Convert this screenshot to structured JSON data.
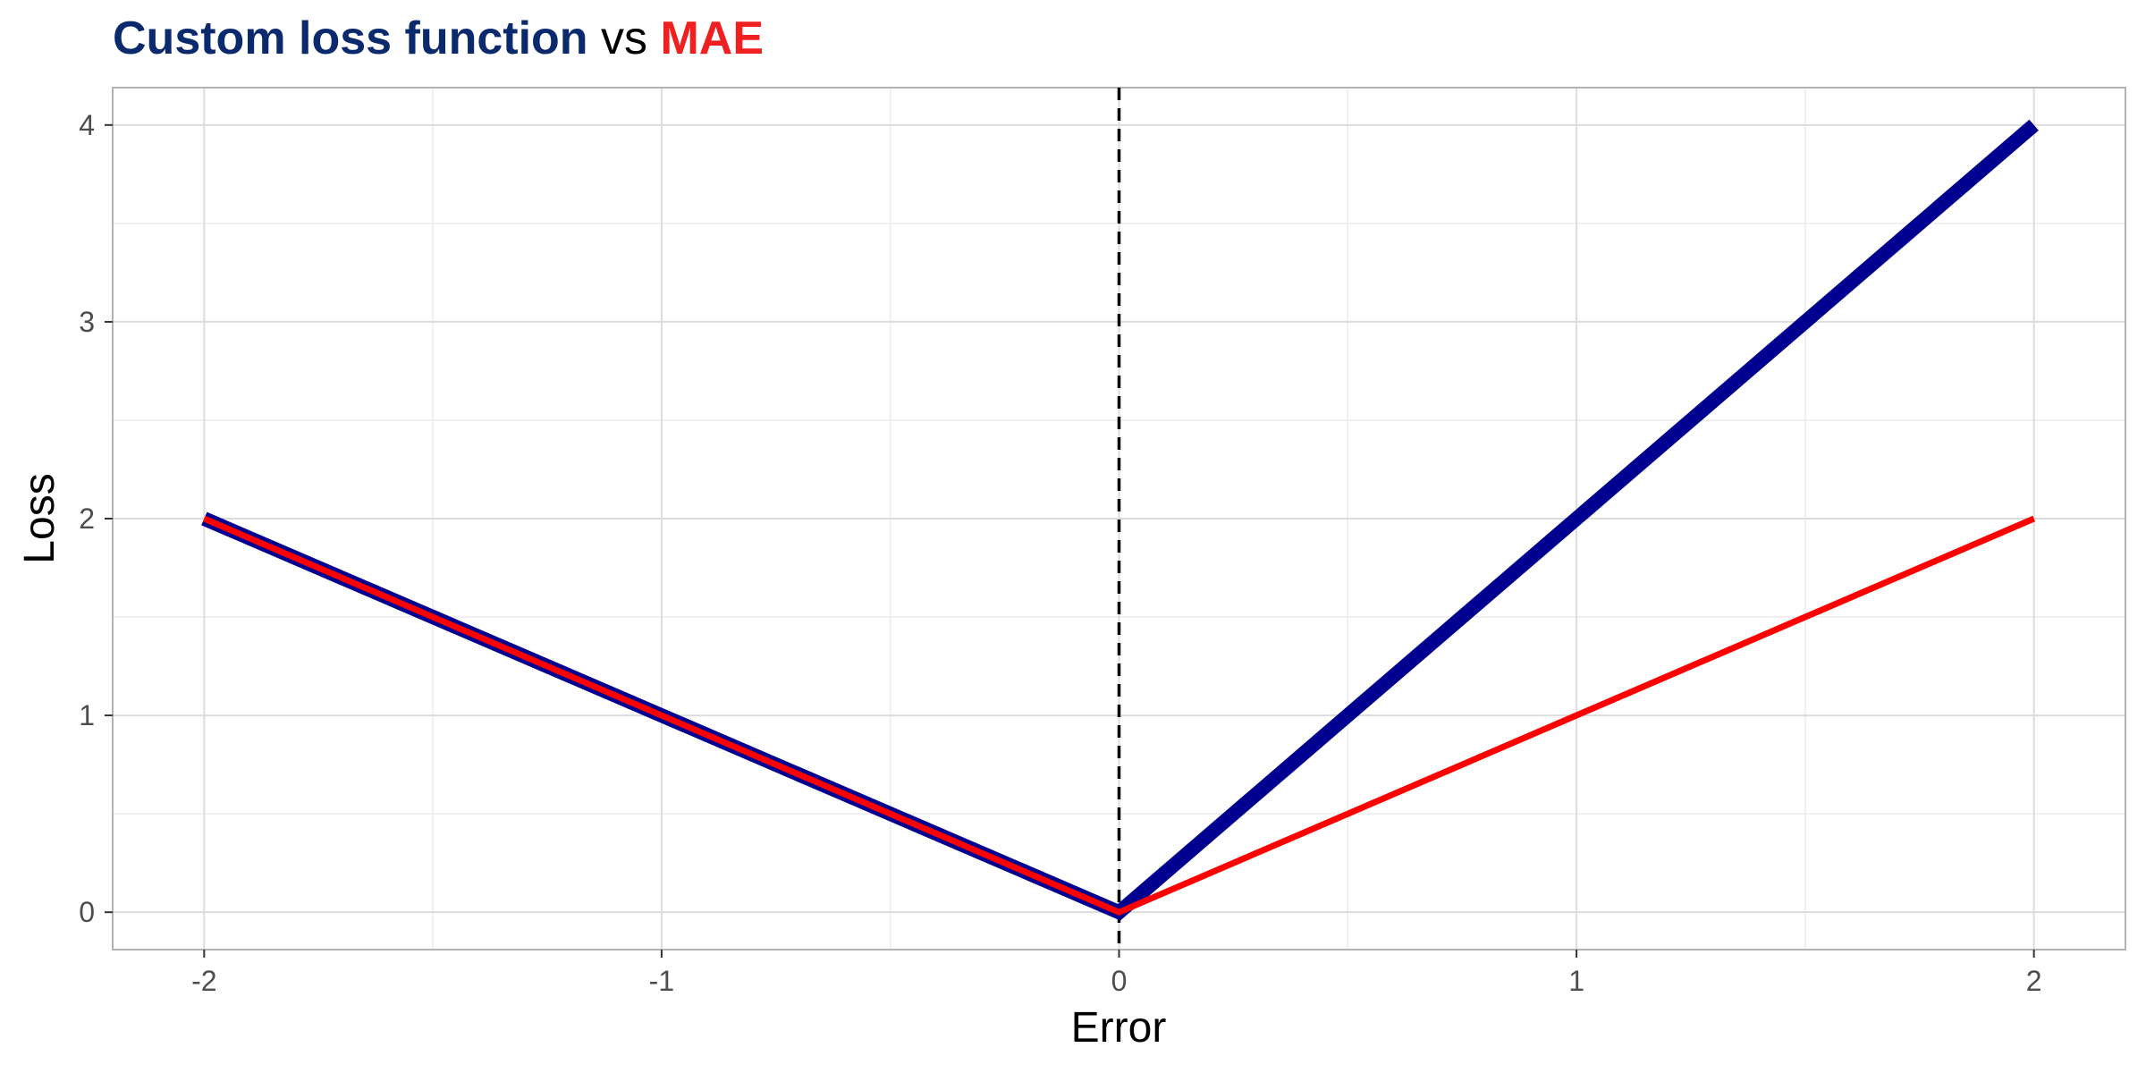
{
  "chart_data": {
    "type": "line",
    "title": {
      "part1": "Custom loss function",
      "part2": " vs ",
      "part3": "MAE"
    },
    "xlabel": "Error",
    "ylabel": "Loss",
    "xlim": [
      -2.2,
      2.2
    ],
    "ylim": [
      -0.19,
      4.19
    ],
    "x_ticks": [
      -2,
      -1,
      0,
      1,
      2
    ],
    "x_tick_labels": [
      "-2",
      "-1",
      "0",
      "1",
      "2"
    ],
    "y_ticks": [
      0,
      1,
      2,
      3,
      4
    ],
    "y_tick_labels": [
      "0",
      "1",
      "2",
      "3",
      "4"
    ],
    "x_minor": [
      -1.5,
      -0.5,
      0.5,
      1.5
    ],
    "y_minor": [
      0.5,
      1.5,
      2.5,
      3.5
    ],
    "grid": true,
    "vline": {
      "x": 0,
      "style": "dashed",
      "color": "#000000"
    },
    "series": [
      {
        "color": "#000090",
        "x": [
          -2,
          0,
          2
        ],
        "y": [
          2,
          0,
          4
        ]
      },
      {
        "color": "#ff0000",
        "x": [
          -2,
          0,
          2
        ],
        "y": [
          2,
          0,
          2
        ]
      }
    ],
    "colors": {
      "title_main": "#0b2a6e",
      "title_vs": "#000000",
      "title_mae": "#f02020",
      "panel_border": "#b3b3b3",
      "grid_major": "#dcdcdc",
      "grid_minor": "#ececec"
    }
  }
}
